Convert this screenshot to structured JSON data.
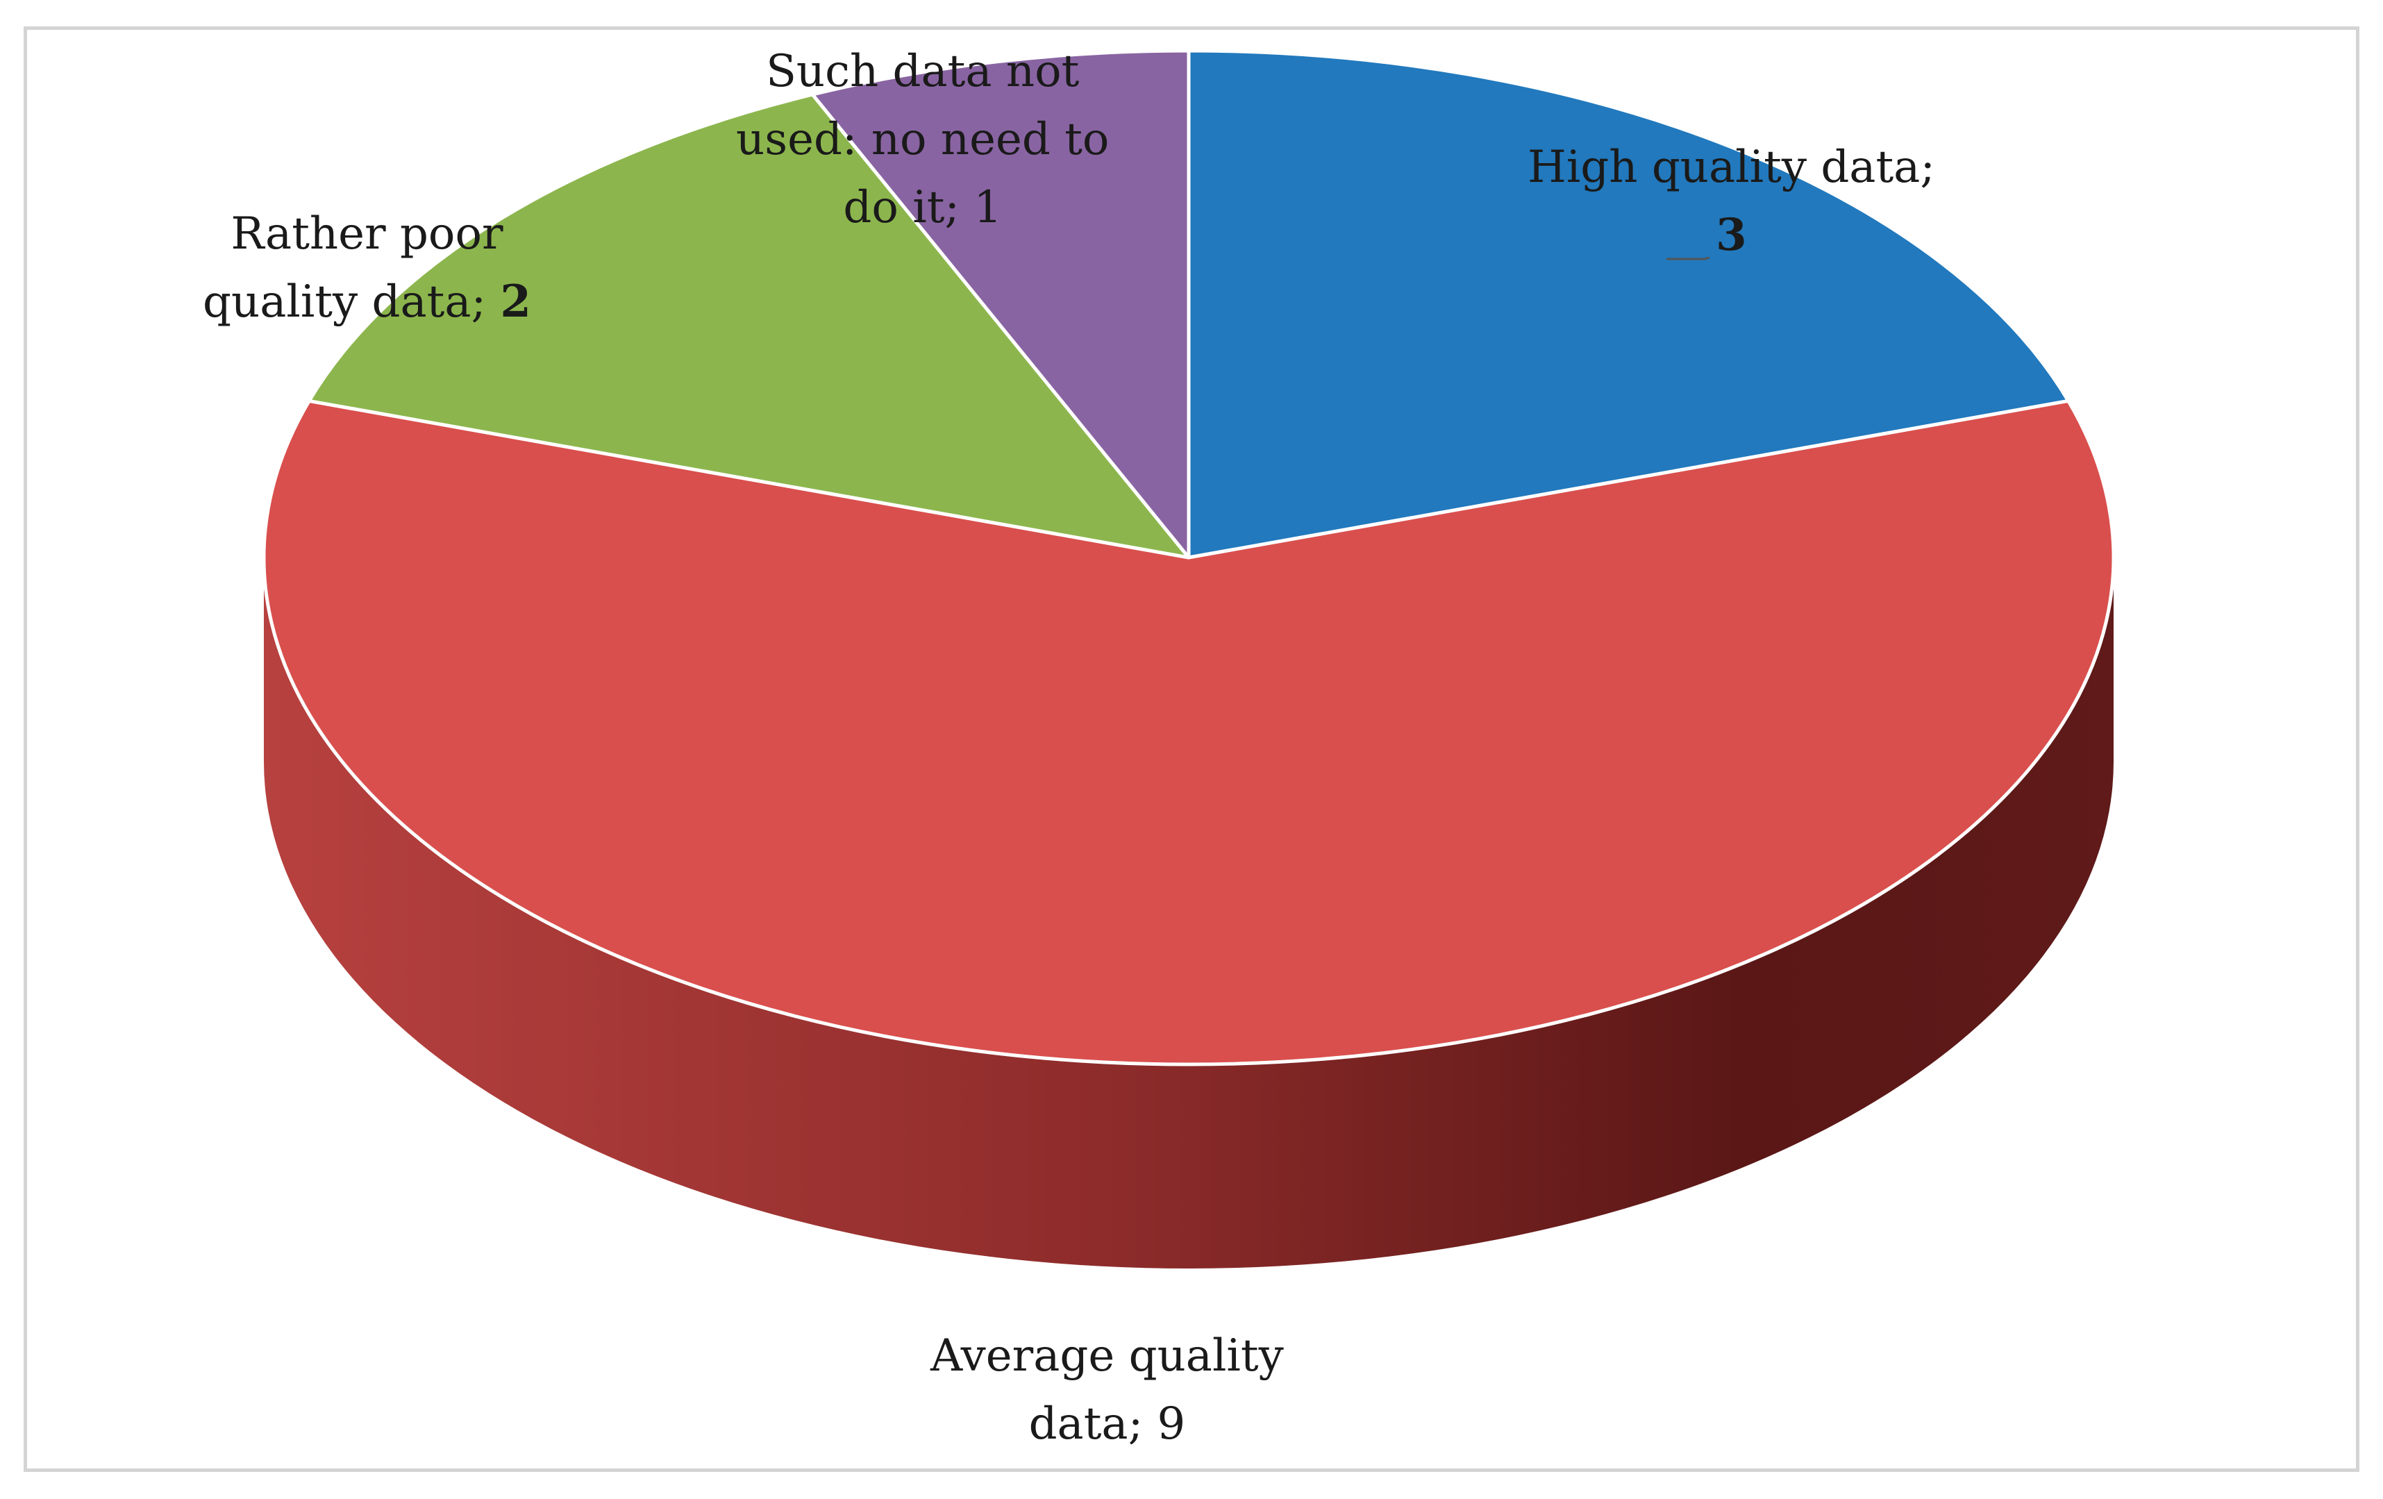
{
  "chart_data": {
    "type": "pie",
    "style": "3d",
    "slices": [
      {
        "label": "High quality data;",
        "value": 3,
        "color": "#2279bd"
      },
      {
        "label": "Average quality data;",
        "value": 9,
        "color": "#d94f4d"
      },
      {
        "label": "Rather poor quality data;",
        "value": 2,
        "color": "#8cb64d"
      },
      {
        "label": "Such data not used: no need to do it;",
        "value": 1,
        "color": "#8964a2"
      }
    ],
    "label_lines": [
      [
        "High quality data;",
        "3"
      ],
      [
        "Average quality",
        "data; 9"
      ],
      [
        "Rather poor",
        "quality data; 2"
      ],
      [
        "Such data not",
        "used: no need to",
        "do it; 1"
      ]
    ],
    "side_color_light": "#b7413f",
    "side_color_dark": "#5a1716",
    "frame_color": "#d4d4d4"
  }
}
